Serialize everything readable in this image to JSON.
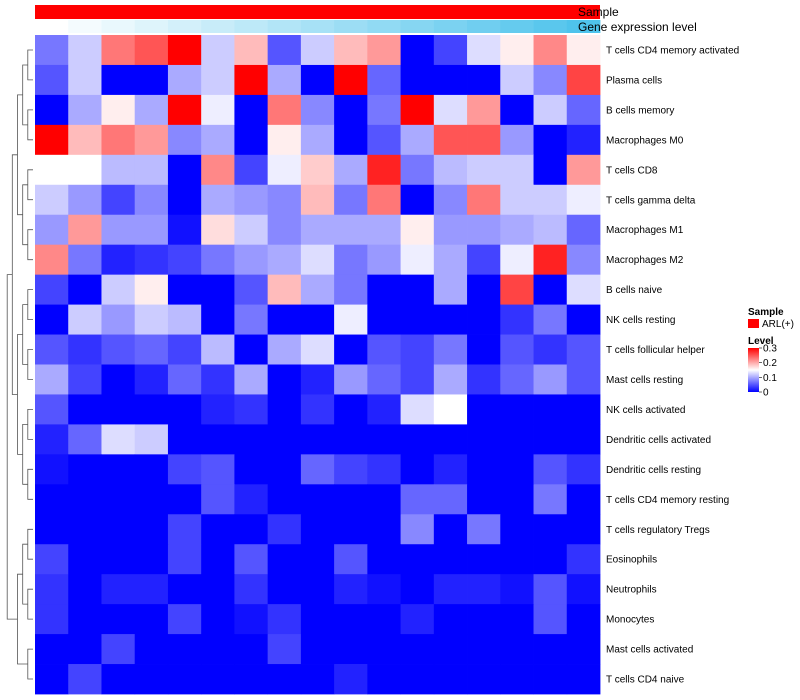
{
  "chart_data": {
    "type": "heatmap",
    "title": "",
    "rows": [
      "T cells CD4 memory activated",
      "Plasma cells",
      "B cells memory",
      "Macrophages M0",
      "T cells CD8",
      "T cells gamma delta",
      "Macrophages M1",
      "Macrophages M2",
      "B cells naive",
      "NK cells resting",
      "T cells follicular helper",
      "Mast cells resting",
      "NK cells activated",
      "Dendritic cells activated",
      "Dendritic cells resting",
      "T cells CD4 memory resting",
      "T cells regulatory  Tregs",
      "Eosinophils",
      "Neutrophils",
      "Monocytes",
      "Mast cells activated",
      "T cells CD4 naive"
    ],
    "n_columns": 17,
    "values": [
      [
        0.07,
        0.12,
        0.23,
        0.25,
        0.3,
        0.12,
        0.19,
        0.05,
        0.12,
        0.19,
        0.21,
        0.0,
        0.04,
        0.13,
        0.16,
        0.22,
        0.16
      ],
      [
        0.05,
        0.12,
        0.0,
        0.0,
        0.1,
        0.12,
        0.3,
        0.1,
        0.0,
        0.3,
        0.06,
        0.0,
        0.0,
        0.0,
        0.12,
        0.08,
        0.26
      ],
      [
        0.0,
        0.1,
        0.16,
        0.1,
        0.3,
        0.14,
        0.0,
        0.23,
        0.08,
        0.0,
        0.07,
        0.3,
        0.13,
        0.21,
        0.0,
        0.12,
        0.06
      ],
      [
        0.3,
        0.19,
        0.23,
        0.21,
        0.08,
        0.1,
        0.0,
        0.16,
        0.1,
        0.0,
        0.05,
        0.1,
        0.25,
        0.25,
        0.09,
        0.0,
        0.02
      ],
      [
        0.15,
        0.15,
        0.11,
        0.11,
        0.0,
        0.22,
        0.04,
        0.14,
        0.18,
        0.1,
        0.28,
        0.07,
        0.11,
        0.12,
        0.12,
        0.0,
        0.21
      ],
      [
        0.12,
        0.09,
        0.04,
        0.08,
        0.0,
        0.1,
        0.09,
        0.08,
        0.19,
        0.07,
        0.23,
        0.0,
        0.08,
        0.23,
        0.12,
        0.12,
        0.14
      ],
      [
        0.09,
        0.21,
        0.09,
        0.09,
        0.01,
        0.17,
        0.12,
        0.08,
        0.1,
        0.1,
        0.1,
        0.16,
        0.09,
        0.09,
        0.1,
        0.11,
        0.06
      ],
      [
        0.22,
        0.07,
        0.02,
        0.03,
        0.04,
        0.07,
        0.09,
        0.1,
        0.13,
        0.07,
        0.09,
        0.14,
        0.1,
        0.04,
        0.14,
        0.28,
        0.08
      ],
      [
        0.04,
        0.0,
        0.12,
        0.16,
        0.0,
        0.0,
        0.05,
        0.19,
        0.1,
        0.07,
        0.0,
        0.0,
        0.1,
        0.0,
        0.26,
        0.0,
        0.13
      ],
      [
        0.0,
        0.12,
        0.09,
        0.12,
        0.11,
        0.0,
        0.07,
        0.0,
        0.0,
        0.14,
        0.0,
        0.0,
        0.0,
        0.0,
        0.03,
        0.07,
        0.0
      ],
      [
        0.05,
        0.03,
        0.05,
        0.06,
        0.04,
        0.11,
        0.0,
        0.1,
        0.13,
        0.0,
        0.05,
        0.04,
        0.07,
        0.0,
        0.05,
        0.03,
        0.05
      ],
      [
        0.1,
        0.04,
        0.0,
        0.02,
        0.06,
        0.03,
        0.1,
        0.0,
        0.02,
        0.09,
        0.06,
        0.04,
        0.1,
        0.03,
        0.06,
        0.09,
        0.05
      ],
      [
        0.05,
        0.0,
        0.0,
        0.0,
        0.0,
        0.02,
        0.03,
        0.0,
        0.03,
        0.0,
        0.02,
        0.13,
        0.15,
        0.0,
        0.0,
        0.0,
        0.0
      ],
      [
        0.02,
        0.06,
        0.13,
        0.12,
        0.0,
        0.0,
        0.0,
        0.0,
        0.0,
        0.0,
        0.0,
        0.0,
        0.0,
        0.0,
        0.0,
        0.0,
        0.0
      ],
      [
        0.01,
        0.0,
        0.0,
        0.0,
        0.04,
        0.05,
        0.0,
        0.0,
        0.06,
        0.04,
        0.03,
        0.0,
        0.02,
        0.0,
        0.0,
        0.05,
        0.03
      ],
      [
        0.0,
        0.0,
        0.0,
        0.0,
        0.0,
        0.05,
        0.02,
        0.0,
        0.0,
        0.0,
        0.0,
        0.06,
        0.06,
        0.0,
        0.0,
        0.07,
        0.0
      ],
      [
        0.0,
        0.0,
        0.0,
        0.0,
        0.04,
        0.0,
        0.0,
        0.03,
        0.0,
        0.0,
        0.0,
        0.08,
        0.0,
        0.07,
        0.0,
        0.0,
        0.0
      ],
      [
        0.04,
        0.0,
        0.0,
        0.0,
        0.04,
        0.0,
        0.05,
        0.0,
        0.0,
        0.05,
        0.0,
        0.0,
        0.0,
        0.0,
        0.0,
        0.0,
        0.03
      ],
      [
        0.03,
        0.0,
        0.02,
        0.02,
        0.0,
        0.0,
        0.03,
        0.0,
        0.0,
        0.02,
        0.01,
        0.0,
        0.02,
        0.02,
        0.01,
        0.05,
        0.01
      ],
      [
        0.03,
        0.0,
        0.0,
        0.0,
        0.04,
        0.0,
        0.01,
        0.03,
        0.0,
        0.0,
        0.0,
        0.02,
        0.0,
        0.0,
        0.0,
        0.05,
        0.0
      ],
      [
        0.0,
        0.0,
        0.04,
        0.0,
        0.0,
        0.0,
        0.0,
        0.04,
        0.0,
        0.0,
        0.0,
        0.0,
        0.0,
        0.0,
        0.0,
        0.0,
        0.0
      ],
      [
        0.0,
        0.04,
        0.0,
        0.0,
        0.0,
        0.0,
        0.0,
        0.0,
        0.0,
        0.02,
        0.0,
        0.0,
        0.0,
        0.0,
        0.0,
        0.0,
        0.0
      ]
    ],
    "column_annotation": {
      "sample": {
        "label": "Sample",
        "value": "ARL(+)",
        "color": "#ff0000"
      },
      "gene_expression": {
        "label": "Gene expression level",
        "low_color": "#ffffff",
        "high_color": "#4fc3ec"
      }
    },
    "color_scale": {
      "min": 0,
      "mid": 0.15,
      "max": 0.3,
      "low": "#0000ff",
      "mid_color": "#ffffff",
      "high": "#ff0000"
    },
    "legend": {
      "sample_title": "Sample",
      "sample_entry": "ARL(+)",
      "level_title": "Level",
      "ticks": [
        "0.3",
        "0.2",
        "0.1",
        "0"
      ],
      "tick_values": [
        0.3,
        0.2,
        0.1,
        0
      ],
      "placement": "right"
    },
    "dendrogram": {
      "side": "left"
    }
  }
}
